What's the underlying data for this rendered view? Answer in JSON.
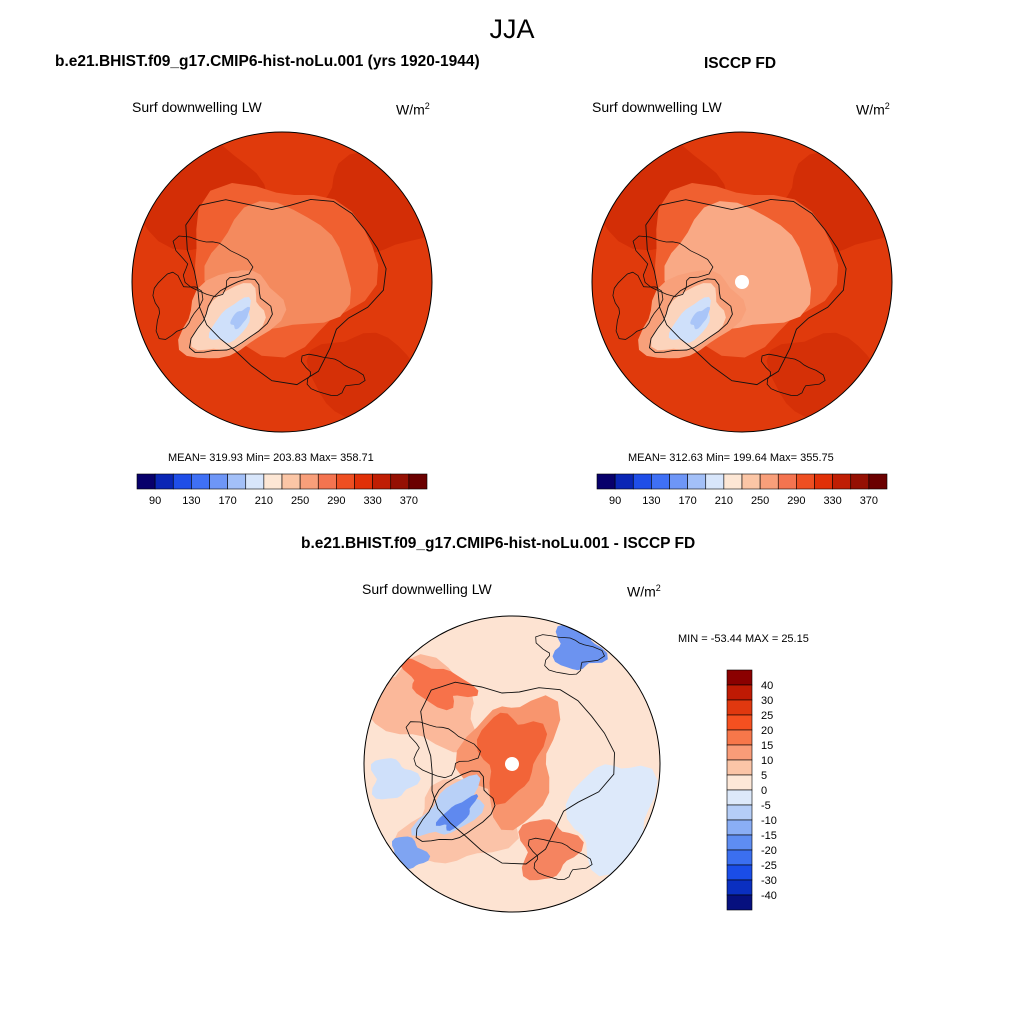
{
  "main_title": "JJA",
  "panels": [
    {
      "title": "b.e21.BHIST.f09_g17.CMIP6-hist-noLu.001 (yrs 1920-1944)",
      "left_string": "Surf downwelling LW",
      "units": "W/m",
      "units_exp": "2",
      "stats": "MEAN= 319.93  Min= 203.83  Max= 358.71",
      "has_hole": false
    },
    {
      "title": "ISCCP FD",
      "left_string": "Surf downwelling LW",
      "units": "W/m",
      "units_exp": "2",
      "stats": "MEAN= 312.63  Min= 199.64  Max= 355.75",
      "has_hole": true
    }
  ],
  "abs_colorbar": {
    "labels": [
      "90",
      "130",
      "170",
      "210",
      "250",
      "290",
      "330",
      "370"
    ],
    "colors": [
      "#08006b",
      "#0a26b5",
      "#1f4ee8",
      "#3f70f5",
      "#6e96f7",
      "#a3c0f8",
      "#d8e6fb",
      "#fde7d5",
      "#fbc6a6",
      "#f89f7a",
      "#f47450",
      "#ee4f22",
      "#e03008",
      "#c01e04",
      "#951003",
      "#6b0000"
    ]
  },
  "diff_panel": {
    "title": "b.e21.BHIST.f09_g17.CMIP6-hist-noLu.001 - ISCCP FD",
    "left_string": "Surf downwelling LW",
    "units": "W/m",
    "units_exp": "2",
    "minmax": "MIN = -53.44 MAX =  25.15"
  },
  "diff_colorbar": {
    "labels": [
      "40",
      "30",
      "25",
      "20",
      "15",
      "10",
      "5",
      "0",
      "-5",
      "-10",
      "-15",
      "-20",
      "-25",
      "-30",
      "-40"
    ],
    "colors": [
      "#8b0000",
      "#bf1a04",
      "#e0380f",
      "#f55020",
      "#f7774a",
      "#f99c78",
      "#fbc5a7",
      "#fde8d8",
      "#dde9fa",
      "#b5cdf7",
      "#8aaef5",
      "#5e8df2",
      "#3b6ff0",
      "#1a4de8",
      "#0a2fc0",
      "#06107f"
    ]
  }
}
